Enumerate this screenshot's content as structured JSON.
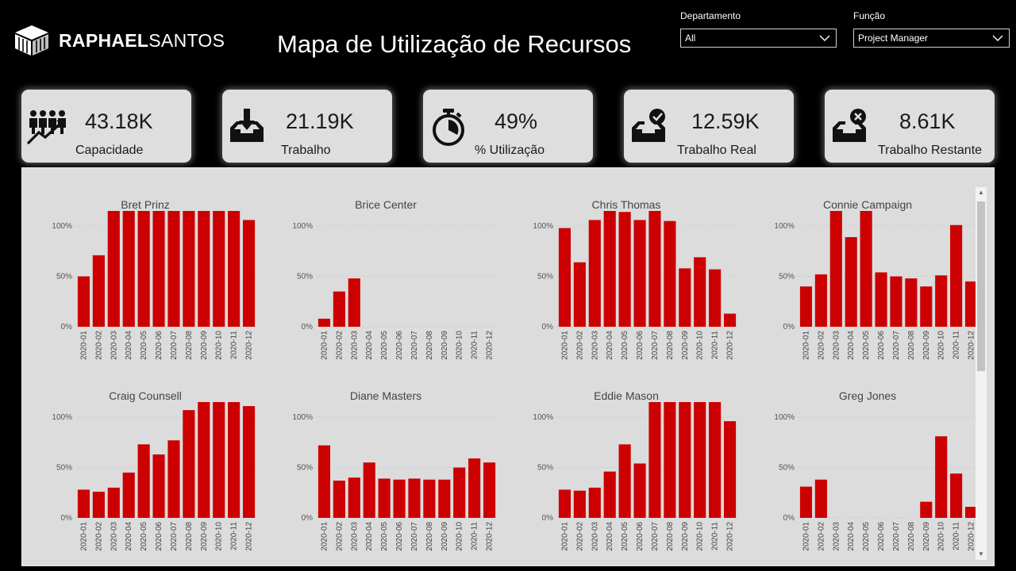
{
  "brand": {
    "bold": "RAPHAEL",
    "light": "SANTOS"
  },
  "title": "Mapa de Utilização de Recursos",
  "filters": {
    "departamento": {
      "label": "Departamento",
      "value": "All"
    },
    "funcao": {
      "label": "Função",
      "value": "Project Manager"
    }
  },
  "kpis": [
    {
      "icon": "people-growth-icon",
      "value": "43.18K",
      "label": "Capacidade"
    },
    {
      "icon": "inbox-download-icon",
      "value": "21.19K",
      "label": "Trabalho"
    },
    {
      "icon": "stopwatch-icon",
      "value": "49%",
      "label": "% Utilização"
    },
    {
      "icon": "inbox-check-icon",
      "value": "12.59K",
      "label": "Trabalho Real"
    },
    {
      "icon": "inbox-x-icon",
      "value": "8.61K",
      "label": "Trabalho Restante"
    }
  ],
  "colors": {
    "bar": "#cc0000",
    "panel": "#dcdcdc",
    "card": "#dedede"
  },
  "chart_data": [
    {
      "type": "bar",
      "title": "Bret Prinz",
      "categories": [
        "2020-01",
        "2020-02",
        "2020-03",
        "2020-04",
        "2020-05",
        "2020-06",
        "2020-07",
        "2020-08",
        "2020-09",
        "2020-10",
        "2020-11",
        "2020-12"
      ],
      "values": [
        50,
        71,
        115,
        115,
        115,
        115,
        115,
        115,
        115,
        115,
        115,
        106
      ],
      "yticks": [
        "0%",
        "50%",
        "100%"
      ],
      "ylim": [
        0,
        115
      ]
    },
    {
      "type": "bar",
      "title": "Brice Center",
      "categories": [
        "2020-01",
        "2020-02",
        "2020-03",
        "2020-04",
        "2020-05",
        "2020-06",
        "2020-07",
        "2020-08",
        "2020-09",
        "2020-10",
        "2020-11",
        "2020-12"
      ],
      "values": [
        8,
        35,
        48,
        0,
        0,
        0,
        0,
        0,
        0,
        0,
        0,
        0
      ],
      "yticks": [
        "0%",
        "50%",
        "100%"
      ],
      "ylim": [
        0,
        115
      ]
    },
    {
      "type": "bar",
      "title": "Chris Thomas",
      "categories": [
        "2020-01",
        "2020-02",
        "2020-03",
        "2020-04",
        "2020-05",
        "2020-06",
        "2020-07",
        "2020-08",
        "2020-09",
        "2020-10",
        "2020-11",
        "2020-12"
      ],
      "values": [
        98,
        64,
        106,
        115,
        114,
        106,
        115,
        105,
        58,
        69,
        57,
        13
      ],
      "yticks": [
        "0%",
        "50%",
        "100%"
      ],
      "ylim": [
        0,
        115
      ]
    },
    {
      "type": "bar",
      "title": "Connie Campaign",
      "categories": [
        "2020-01",
        "2020-02",
        "2020-03",
        "2020-04",
        "2020-05",
        "2020-06",
        "2020-07",
        "2020-08",
        "2020-09",
        "2020-10",
        "2020-11",
        "2020-12"
      ],
      "values": [
        40,
        52,
        115,
        89,
        115,
        54,
        50,
        48,
        40,
        51,
        101,
        45
      ],
      "yticks": [
        "0%",
        "50%",
        "100%"
      ],
      "ylim": [
        0,
        115
      ]
    },
    {
      "type": "bar",
      "title": "Craig Counsell",
      "categories": [
        "2020-01",
        "2020-02",
        "2020-03",
        "2020-04",
        "2020-05",
        "2020-06",
        "2020-07",
        "2020-08",
        "2020-09",
        "2020-10",
        "2020-11",
        "2020-12"
      ],
      "values": [
        28,
        26,
        30,
        45,
        73,
        63,
        77,
        107,
        115,
        115,
        115,
        111
      ],
      "yticks": [
        "0%",
        "50%",
        "100%"
      ],
      "ylim": [
        0,
        115
      ]
    },
    {
      "type": "bar",
      "title": "Diane Masters",
      "categories": [
        "2020-01",
        "2020-02",
        "2020-03",
        "2020-04",
        "2020-05",
        "2020-06",
        "2020-07",
        "2020-08",
        "2020-09",
        "2020-10",
        "2020-11",
        "2020-12"
      ],
      "values": [
        72,
        37,
        40,
        55,
        39,
        38,
        39,
        38,
        38,
        50,
        59,
        55
      ],
      "yticks": [
        "0%",
        "50%",
        "100%"
      ],
      "ylim": [
        0,
        115
      ]
    },
    {
      "type": "bar",
      "title": "Eddie Mason",
      "categories": [
        "2020-01",
        "2020-02",
        "2020-03",
        "2020-04",
        "2020-05",
        "2020-06",
        "2020-07",
        "2020-08",
        "2020-09",
        "2020-10",
        "2020-11",
        "2020-12"
      ],
      "values": [
        28,
        27,
        30,
        46,
        73,
        54,
        115,
        115,
        115,
        115,
        115,
        96
      ],
      "yticks": [
        "0%",
        "50%",
        "100%"
      ],
      "ylim": [
        0,
        115
      ]
    },
    {
      "type": "bar",
      "title": "Greg Jones",
      "categories": [
        "2020-01",
        "2020-02",
        "2020-03",
        "2020-04",
        "2020-05",
        "2020-06",
        "2020-07",
        "2020-08",
        "2020-09",
        "2020-10",
        "2020-11",
        "2020-12"
      ],
      "values": [
        31,
        38,
        0,
        0,
        0,
        0,
        0,
        0,
        16,
        81,
        44,
        11
      ],
      "yticks": [
        "0%",
        "50%",
        "100%"
      ],
      "ylim": [
        0,
        115
      ]
    }
  ]
}
